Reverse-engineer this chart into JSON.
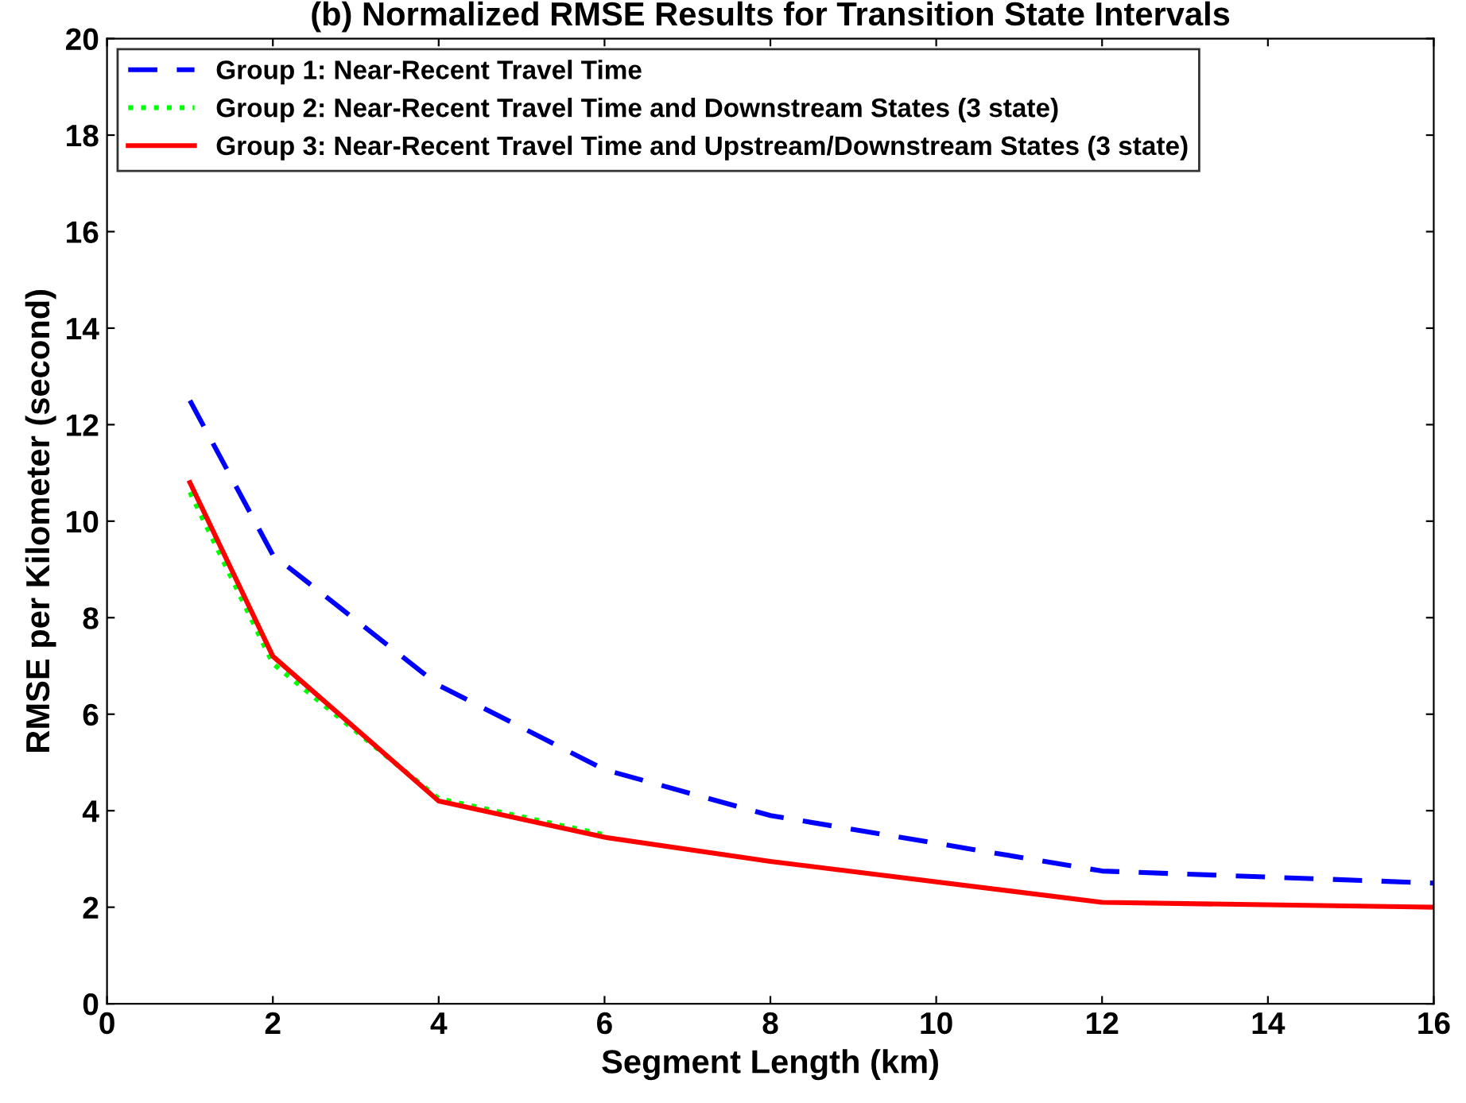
{
  "chart_data": {
    "type": "line",
    "title": "(b) Normalized RMSE Results for Transition State Intervals",
    "xlabel": "Segment Length (km)",
    "ylabel": "RMSE per Kilometer (second)",
    "x": [
      1,
      2,
      4,
      6,
      8,
      12,
      16
    ],
    "series": [
      {
        "name": "Group 1: Near-Recent Travel Time",
        "color": "#0000ff",
        "line_style": "dashed",
        "values": [
          12.5,
          9.3,
          6.6,
          4.85,
          3.9,
          2.75,
          2.5
        ]
      },
      {
        "name": "Group 2: Near-Recent Travel Time and Downstream States (3 state)",
        "color": "#00ff00",
        "line_style": "dotted",
        "values": [
          10.6,
          7.05,
          4.25,
          3.5,
          null,
          null,
          null
        ]
      },
      {
        "name": "Group 3: Near-Recent Travel Time and Upstream/Downstream States (3 state)",
        "color": "#ff0000",
        "line_style": "solid",
        "values": [
          10.8,
          7.2,
          4.2,
          3.45,
          2.95,
          2.1,
          2.0
        ]
      }
    ],
    "xlim": [
      0,
      16
    ],
    "xticks": [
      0,
      2,
      4,
      6,
      8,
      10,
      12,
      14,
      16
    ],
    "ylim": [
      0,
      20
    ],
    "yticks": [
      0,
      2,
      4,
      6,
      8,
      10,
      12,
      14,
      16,
      18,
      20
    ],
    "grid": false,
    "legend": "top left",
    "marker": "none"
  }
}
